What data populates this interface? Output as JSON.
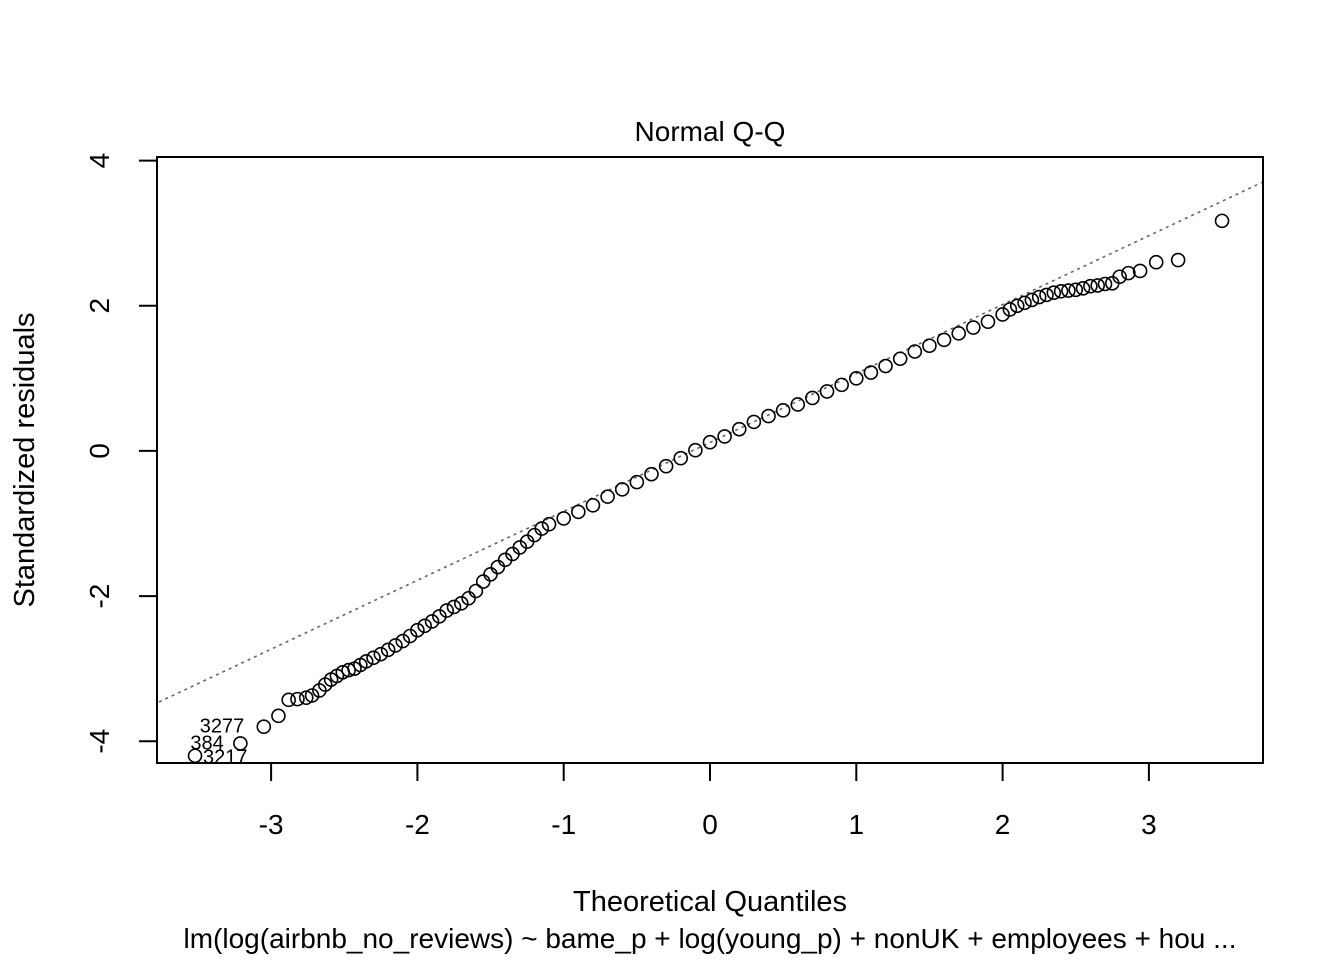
{
  "chart_data": {
    "type": "scatter",
    "title": "Normal Q-Q",
    "xlabel": "Theoretical Quantiles",
    "ylabel": "Standardized residuals",
    "subtitle": "lm(log(airbnb_no_reviews) ~ bame_p + log(young_p) + nonUK + employees + hou ...",
    "xlim": [
      -3.78,
      3.78
    ],
    "ylim": [
      -4.3,
      4.05
    ],
    "x_ticks": [
      -3,
      -2,
      -1,
      0,
      1,
      2,
      3
    ],
    "y_ticks": [
      -4,
      -2,
      0,
      2,
      4
    ],
    "x_tick_labels": [
      "-3",
      "-2",
      "-1",
      "0",
      "1",
      "2",
      "3"
    ],
    "y_tick_labels": [
      "-4",
      "-2",
      "0",
      "2",
      "4"
    ],
    "grid": false,
    "reference_line": {
      "style": "dotted",
      "color": "#666666",
      "slope": 0.947,
      "intercept": 0.12
    },
    "points": [
      {
        "x": -3.52,
        "y": -4.2
      },
      {
        "x": -3.21,
        "y": -4.03
      },
      {
        "x": -3.05,
        "y": -3.8
      },
      {
        "x": -2.95,
        "y": -3.65
      },
      {
        "x": -2.88,
        "y": -3.43
      },
      {
        "x": -2.82,
        "y": -3.42
      },
      {
        "x": -2.76,
        "y": -3.4
      },
      {
        "x": -2.72,
        "y": -3.37
      },
      {
        "x": -2.67,
        "y": -3.3
      },
      {
        "x": -2.63,
        "y": -3.22
      },
      {
        "x": -2.59,
        "y": -3.15
      },
      {
        "x": -2.55,
        "y": -3.1
      },
      {
        "x": -2.51,
        "y": -3.05
      },
      {
        "x": -2.47,
        "y": -3.02
      },
      {
        "x": -2.43,
        "y": -3.0
      },
      {
        "x": -2.39,
        "y": -2.95
      },
      {
        "x": -2.35,
        "y": -2.9
      },
      {
        "x": -2.3,
        "y": -2.85
      },
      {
        "x": -2.25,
        "y": -2.8
      },
      {
        "x": -2.2,
        "y": -2.74
      },
      {
        "x": -2.15,
        "y": -2.68
      },
      {
        "x": -2.1,
        "y": -2.62
      },
      {
        "x": -2.05,
        "y": -2.55
      },
      {
        "x": -2.0,
        "y": -2.47
      },
      {
        "x": -1.95,
        "y": -2.41
      },
      {
        "x": -1.9,
        "y": -2.35
      },
      {
        "x": -1.85,
        "y": -2.28
      },
      {
        "x": -1.8,
        "y": -2.2
      },
      {
        "x": -1.75,
        "y": -2.15
      },
      {
        "x": -1.7,
        "y": -2.1
      },
      {
        "x": -1.65,
        "y": -2.03
      },
      {
        "x": -1.6,
        "y": -1.93
      },
      {
        "x": -1.55,
        "y": -1.8
      },
      {
        "x": -1.5,
        "y": -1.7
      },
      {
        "x": -1.45,
        "y": -1.6
      },
      {
        "x": -1.4,
        "y": -1.5
      },
      {
        "x": -1.35,
        "y": -1.42
      },
      {
        "x": -1.3,
        "y": -1.33
      },
      {
        "x": -1.25,
        "y": -1.25
      },
      {
        "x": -1.2,
        "y": -1.16
      },
      {
        "x": -1.15,
        "y": -1.07
      },
      {
        "x": -1.1,
        "y": -1.01
      },
      {
        "x": -1.0,
        "y": -0.93
      },
      {
        "x": -0.9,
        "y": -0.84
      },
      {
        "x": -0.8,
        "y": -0.75
      },
      {
        "x": -0.7,
        "y": -0.63
      },
      {
        "x": -0.6,
        "y": -0.53
      },
      {
        "x": -0.5,
        "y": -0.43
      },
      {
        "x": -0.4,
        "y": -0.32
      },
      {
        "x": -0.3,
        "y": -0.21
      },
      {
        "x": -0.2,
        "y": -0.1
      },
      {
        "x": -0.1,
        "y": 0.01
      },
      {
        "x": 0.0,
        "y": 0.12
      },
      {
        "x": 0.1,
        "y": 0.2
      },
      {
        "x": 0.2,
        "y": 0.3
      },
      {
        "x": 0.3,
        "y": 0.4
      },
      {
        "x": 0.4,
        "y": 0.48
      },
      {
        "x": 0.5,
        "y": 0.56
      },
      {
        "x": 0.6,
        "y": 0.64
      },
      {
        "x": 0.7,
        "y": 0.73
      },
      {
        "x": 0.8,
        "y": 0.82
      },
      {
        "x": 0.9,
        "y": 0.91
      },
      {
        "x": 1.0,
        "y": 1.0
      },
      {
        "x": 1.1,
        "y": 1.08
      },
      {
        "x": 1.2,
        "y": 1.17
      },
      {
        "x": 1.3,
        "y": 1.27
      },
      {
        "x": 1.4,
        "y": 1.37
      },
      {
        "x": 1.5,
        "y": 1.45
      },
      {
        "x": 1.6,
        "y": 1.53
      },
      {
        "x": 1.7,
        "y": 1.62
      },
      {
        "x": 1.8,
        "y": 1.7
      },
      {
        "x": 1.9,
        "y": 1.78
      },
      {
        "x": 2.0,
        "y": 1.88
      },
      {
        "x": 2.05,
        "y": 1.95
      },
      {
        "x": 2.1,
        "y": 2.0
      },
      {
        "x": 2.15,
        "y": 2.04
      },
      {
        "x": 2.2,
        "y": 2.08
      },
      {
        "x": 2.25,
        "y": 2.12
      },
      {
        "x": 2.3,
        "y": 2.15
      },
      {
        "x": 2.35,
        "y": 2.18
      },
      {
        "x": 2.4,
        "y": 2.2
      },
      {
        "x": 2.45,
        "y": 2.21
      },
      {
        "x": 2.5,
        "y": 2.22
      },
      {
        "x": 2.55,
        "y": 2.24
      },
      {
        "x": 2.6,
        "y": 2.27
      },
      {
        "x": 2.65,
        "y": 2.28
      },
      {
        "x": 2.7,
        "y": 2.3
      },
      {
        "x": 2.75,
        "y": 2.31
      },
      {
        "x": 2.8,
        "y": 2.4
      },
      {
        "x": 2.86,
        "y": 2.45
      },
      {
        "x": 2.94,
        "y": 2.48
      },
      {
        "x": 3.05,
        "y": 2.6
      },
      {
        "x": 3.2,
        "y": 2.63
      },
      {
        "x": 3.5,
        "y": 3.17
      }
    ],
    "labeled_points": [
      {
        "label": "3277",
        "x": -3.05,
        "y": -3.8
      },
      {
        "label": "384",
        "x": -3.21,
        "y": -4.03
      },
      {
        "label": "3217",
        "x": -3.52,
        "y": -4.2
      }
    ]
  }
}
